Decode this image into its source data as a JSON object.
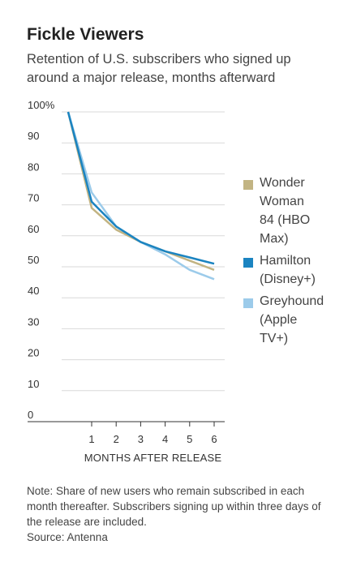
{
  "header": {
    "title": "Fickle Viewers",
    "subtitle": "Retention of U.S. subscribers who signed up around a major release, months afterward"
  },
  "footer": {
    "note": "Note: Share of new users who remain subscribed in each month thereafter. Subscribers signing up within three days of the release are included.",
    "source": "Source: Antenna"
  },
  "chart_data": {
    "type": "line",
    "title": "Fickle Viewers",
    "subtitle": "Retention of U.S. subscribers who signed up around a major release, months afterward",
    "xlabel": "MONTHS AFTER RELEASE",
    "ylabel": "",
    "x": [
      0,
      1,
      2,
      3,
      4,
      5,
      6
    ],
    "xticks": [
      1,
      2,
      3,
      4,
      5,
      6
    ],
    "xlim": [
      0,
      6
    ],
    "yticks": [
      0,
      10,
      20,
      30,
      40,
      50,
      60,
      70,
      80,
      90,
      100
    ],
    "ytick_labels": [
      "0",
      "10",
      "20",
      "30",
      "40",
      "50",
      "60",
      "70",
      "80",
      "90",
      "100%"
    ],
    "ylim": [
      0,
      100
    ],
    "grid": true,
    "legend_position": "right",
    "series": [
      {
        "name": "Wonder Woman 84 (HBO Max)",
        "values": [
          100,
          69,
          62,
          58,
          55,
          52,
          49
        ],
        "color": "#c2b483"
      },
      {
        "name": "Hamilton (Disney+)",
        "values": [
          100,
          71,
          63,
          58,
          55,
          53,
          51
        ],
        "color": "#1b84c1"
      },
      {
        "name": "Greyhound (Apple TV+)",
        "values": [
          100,
          74,
          63,
          58,
          54,
          49,
          46
        ],
        "color": "#9ccbea"
      }
    ],
    "legend": [
      {
        "lines": [
          "Wonder",
          "Woman",
          "84 (HBO",
          "Max)"
        ]
      },
      {
        "lines": [
          "Hamilton",
          "(Disney+)"
        ]
      },
      {
        "lines": [
          "Greyhound",
          "(Apple",
          "TV+)"
        ]
      }
    ]
  }
}
